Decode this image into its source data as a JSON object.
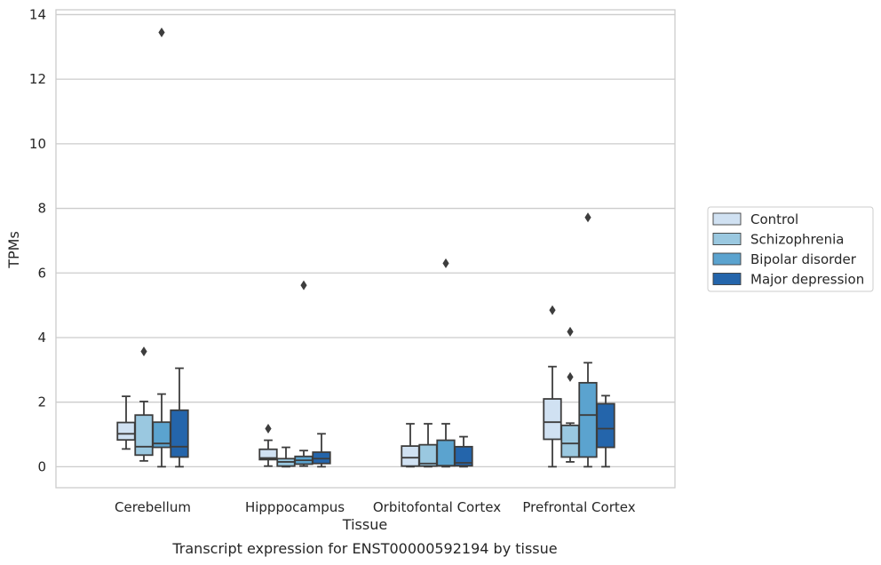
{
  "chart_data": {
    "type": "box",
    "title": "",
    "caption": "Transcript expression for ENST00000592194 by tissue",
    "xlabel": "Tissue",
    "ylabel": "TPMs",
    "ylim": [
      -0.65,
      14.15
    ],
    "yticks": [
      0,
      2,
      4,
      6,
      8,
      10,
      12,
      14
    ],
    "grid": "horizontal",
    "legend_position": "right",
    "categories": [
      "Cerebellum",
      "Hipppocampus",
      "Orbitofontal Cortex",
      "Prefrontal Cortex"
    ],
    "series": [
      {
        "name": "Control",
        "color": "#d0e1f2",
        "boxes": [
          {
            "whisker_low": 0.55,
            "q1": 0.83,
            "median": 1.02,
            "q3": 1.37,
            "whisker_high": 2.18,
            "outliers": []
          },
          {
            "whisker_low": 0.02,
            "q1": 0.22,
            "median": 0.27,
            "q3": 0.54,
            "whisker_high": 0.82,
            "outliers": [
              1.18
            ]
          },
          {
            "whisker_low": 0.0,
            "q1": 0.02,
            "median": 0.28,
            "q3": 0.64,
            "whisker_high": 1.33,
            "outliers": []
          },
          {
            "whisker_low": 0.0,
            "q1": 0.85,
            "median": 1.38,
            "q3": 2.1,
            "whisker_high": 3.1,
            "outliers": [
              4.85
            ]
          }
        ]
      },
      {
        "name": "Schizophrenia",
        "color": "#9ac8e0",
        "boxes": [
          {
            "whisker_low": 0.18,
            "q1": 0.36,
            "median": 0.62,
            "q3": 1.6,
            "whisker_high": 2.02,
            "outliers": [
              3.57
            ]
          },
          {
            "whisker_low": 0.0,
            "q1": 0.02,
            "median": 0.15,
            "q3": 0.25,
            "whisker_high": 0.6,
            "outliers": []
          },
          {
            "whisker_low": 0.0,
            "q1": 0.02,
            "median": 0.1,
            "q3": 0.68,
            "whisker_high": 1.33,
            "outliers": []
          },
          {
            "whisker_low": 0.15,
            "q1": 0.3,
            "median": 0.72,
            "q3": 1.28,
            "whisker_high": 1.35,
            "outliers": [
              2.78,
              4.18
            ]
          }
        ]
      },
      {
        "name": "Bipolar disorder",
        "color": "#5ba3cf",
        "boxes": [
          {
            "whisker_low": 0.0,
            "q1": 0.6,
            "median": 0.72,
            "q3": 1.38,
            "whisker_high": 2.25,
            "outliers": [
              13.45
            ]
          },
          {
            "whisker_low": 0.02,
            "q1": 0.08,
            "median": 0.2,
            "q3": 0.32,
            "whisker_high": 0.5,
            "outliers": [
              5.62
            ]
          },
          {
            "whisker_low": 0.0,
            "q1": 0.03,
            "median": 0.03,
            "q3": 0.82,
            "whisker_high": 1.33,
            "outliers": [
              6.3
            ]
          },
          {
            "whisker_low": 0.0,
            "q1": 0.3,
            "median": 1.6,
            "q3": 2.6,
            "whisker_high": 3.22,
            "outliers": [
              7.72
            ]
          }
        ]
      },
      {
        "name": "Major depression",
        "color": "#2465ab",
        "boxes": [
          {
            "whisker_low": 0.0,
            "q1": 0.3,
            "median": 0.62,
            "q3": 1.75,
            "whisker_high": 3.05,
            "outliers": []
          },
          {
            "whisker_low": 0.0,
            "q1": 0.1,
            "median": 0.25,
            "q3": 0.45,
            "whisker_high": 1.02,
            "outliers": []
          },
          {
            "whisker_low": 0.0,
            "q1": 0.03,
            "median": 0.12,
            "q3": 0.62,
            "whisker_high": 0.93,
            "outliers": []
          },
          {
            "whisker_low": 0.0,
            "q1": 0.6,
            "median": 1.18,
            "q3": 1.95,
            "whisker_high": 2.2,
            "outliers": []
          }
        ]
      }
    ]
  }
}
